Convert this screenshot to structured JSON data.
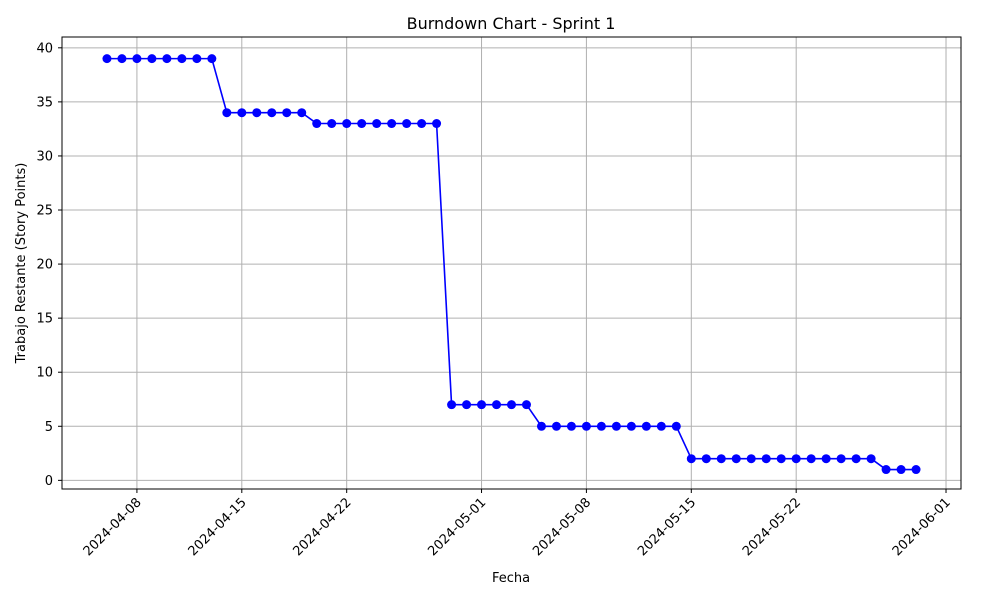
{
  "chart_data": {
    "type": "line",
    "title": "Burndown Chart - Sprint 1",
    "xlabel": "Fecha",
    "ylabel": "Trabajo Restante (Story Points)",
    "xlim": [
      "2024-04-03",
      "2024-06-02"
    ],
    "ylim": [
      -0.8,
      41
    ],
    "grid": true,
    "x_ticks": [
      "2024-04-08",
      "2024-04-15",
      "2024-04-22",
      "2024-05-01",
      "2024-05-08",
      "2024-05-15",
      "2024-05-22",
      "2024-06-01"
    ],
    "y_ticks": [
      0,
      5,
      10,
      15,
      20,
      25,
      30,
      35,
      40
    ],
    "series": [
      {
        "color": "#0000ff",
        "marker": "circle",
        "start_date": "2024-04-06",
        "values": [
          39,
          39,
          39,
          39,
          39,
          39,
          39,
          39,
          34,
          34,
          34,
          34,
          34,
          34,
          33,
          33,
          33,
          33,
          33,
          33,
          33,
          33,
          33,
          7,
          7,
          7,
          7,
          7,
          7,
          5,
          5,
          5,
          5,
          5,
          5,
          5,
          5,
          5,
          5,
          2,
          2,
          2,
          2,
          2,
          2,
          2,
          2,
          2,
          2,
          2,
          2,
          2,
          1,
          1,
          1
        ]
      }
    ]
  }
}
